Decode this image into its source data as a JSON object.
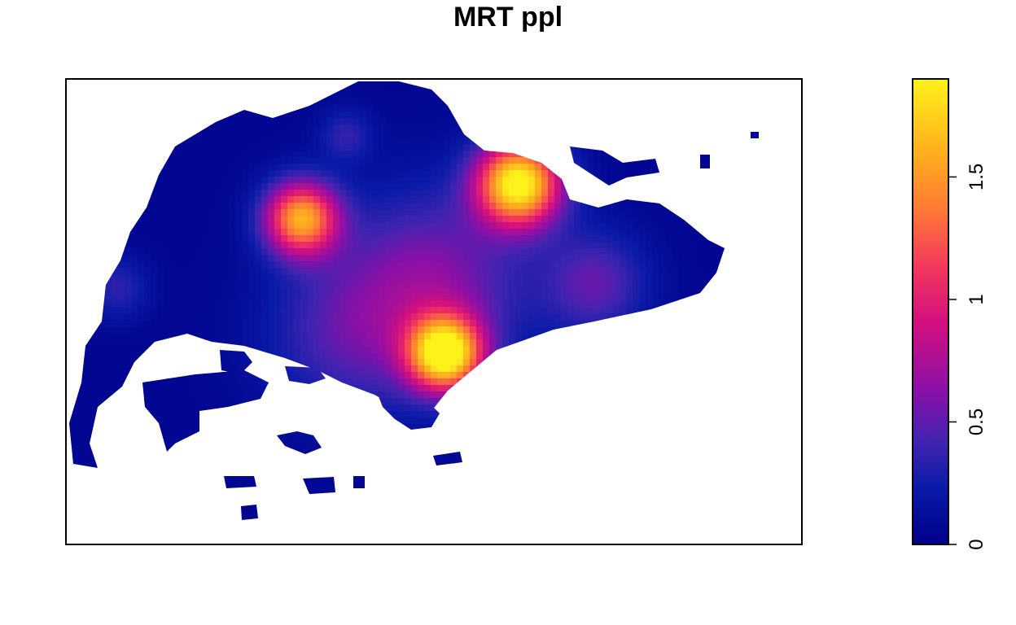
{
  "chart_data": {
    "type": "heatmap",
    "title": "MRT ppl",
    "xlabel": "",
    "ylabel": "",
    "axes_shown": false,
    "colorbar": {
      "position": "right",
      "range": [
        0,
        1.9
      ],
      "ticks": [
        0,
        0.5,
        1,
        1.5
      ],
      "tick_labels": [
        "0",
        "0.5",
        "1",
        "1.5"
      ],
      "palette": [
        "#00008B",
        "#0A1AA8",
        "#3F24B0",
        "#8A10A8",
        "#D4107E",
        "#F33A5C",
        "#FF7A35",
        "#FFB21C",
        "#FFF21A"
      ],
      "palette_stops": [
        0,
        0.12,
        0.22,
        0.33,
        0.48,
        0.6,
        0.72,
        0.85,
        1
      ]
    },
    "background_value": 0.05,
    "hotspots": [
      {
        "x": 0.32,
        "y": 0.7,
        "value": 1.5,
        "sigma": 0.035
      },
      {
        "x": 0.615,
        "y": 0.775,
        "value": 1.9,
        "sigma": 0.04
      },
      {
        "x": 0.515,
        "y": 0.41,
        "value": 1.85,
        "sigma": 0.035
      },
      {
        "x": 0.5,
        "y": 0.56,
        "value": 0.55,
        "sigma": 0.09
      },
      {
        "x": 0.38,
        "y": 0.45,
        "value": 0.35,
        "sigma": 0.08
      },
      {
        "x": 0.72,
        "y": 0.56,
        "value": 0.45,
        "sigma": 0.05
      },
      {
        "x": 0.38,
        "y": 0.88,
        "value": 0.3,
        "sigma": 0.025
      },
      {
        "x": 0.07,
        "y": 0.55,
        "value": 0.3,
        "sigma": 0.03
      }
    ]
  },
  "colors": {
    "frame": "#000000",
    "background": "#ffffff"
  }
}
